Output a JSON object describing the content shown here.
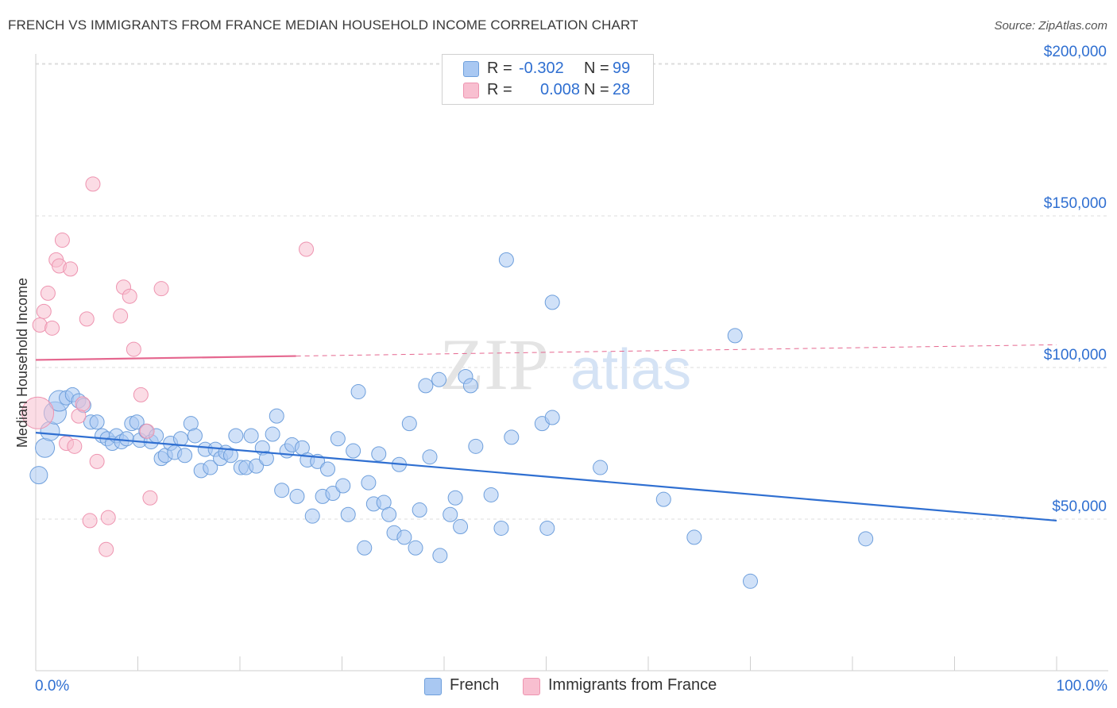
{
  "title": "FRENCH VS IMMIGRANTS FROM FRANCE MEDIAN HOUSEHOLD INCOME CORRELATION CHART",
  "source": "Source: ZipAtlas.com",
  "watermark": {
    "zip": "ZIP",
    "atlas": "atlas"
  },
  "legend": {
    "french": {
      "r_label": "R =",
      "r_value": "-0.302",
      "n_label": "N =",
      "n_value": "99"
    },
    "immigrants": {
      "r_label": "R =",
      "r_value": "0.008",
      "n_label": "N =",
      "n_value": "28"
    }
  },
  "colors": {
    "french_fill": "#a9c8f2",
    "french_stroke": "#6e9fdc",
    "french_line": "#2f6fd1",
    "imm_fill": "#f8bfd0",
    "imm_stroke": "#ee94b0",
    "imm_line": "#e5678f",
    "axis_text": "#2f6fd1",
    "grid": "#dcdcdc"
  },
  "chart_data": {
    "type": "scatter",
    "title": "FRENCH VS IMMIGRANTS FROM FRANCE MEDIAN HOUSEHOLD INCOME CORRELATION CHART",
    "xlabel": "",
    "ylabel": "Median Household Income",
    "xlim": [
      0,
      100
    ],
    "ylim": [
      0,
      210000
    ],
    "x_tick_labels": [
      "0.0%",
      "100.0%"
    ],
    "y_ticks": [
      50000,
      100000,
      150000,
      200000
    ],
    "y_tick_labels": [
      "$50,000",
      "$100,000",
      "$150,000",
      "$200,000"
    ],
    "grid": true,
    "legend_position": "top-center and bottom",
    "series": [
      {
        "name": "French",
        "r": -0.302,
        "n": 99,
        "trend": {
          "x0": 0,
          "y0": 78500,
          "x1": 100,
          "y1": 49500
        },
        "points": [
          [
            0.3,
            64500
          ],
          [
            0.9,
            73500
          ],
          [
            1.4,
            79000
          ],
          [
            1.9,
            85000
          ],
          [
            2.3,
            89000
          ],
          [
            3.0,
            90000
          ],
          [
            3.6,
            91000
          ],
          [
            4.2,
            89000
          ],
          [
            4.7,
            87500
          ],
          [
            5.4,
            82000
          ],
          [
            6.0,
            82000
          ],
          [
            6.5,
            77500
          ],
          [
            7.0,
            76500
          ],
          [
            7.5,
            75000
          ],
          [
            7.9,
            77500
          ],
          [
            8.4,
            75500
          ],
          [
            8.9,
            76500
          ],
          [
            9.4,
            81500
          ],
          [
            9.9,
            82000
          ],
          [
            10.2,
            76000
          ],
          [
            10.8,
            79000
          ],
          [
            11.3,
            75500
          ],
          [
            11.8,
            77500
          ],
          [
            12.3,
            70000
          ],
          [
            12.7,
            71000
          ],
          [
            13.2,
            75000
          ],
          [
            13.6,
            72000
          ],
          [
            14.2,
            76500
          ],
          [
            14.6,
            71000
          ],
          [
            15.2,
            81500
          ],
          [
            15.6,
            77500
          ],
          [
            16.2,
            66000
          ],
          [
            16.6,
            73000
          ],
          [
            17.1,
            67000
          ],
          [
            17.6,
            73000
          ],
          [
            18.1,
            70000
          ],
          [
            18.6,
            72000
          ],
          [
            19.1,
            71000
          ],
          [
            19.6,
            77500
          ],
          [
            20.1,
            67000
          ],
          [
            20.6,
            67000
          ],
          [
            21.1,
            77500
          ],
          [
            21.6,
            67500
          ],
          [
            22.2,
            73500
          ],
          [
            22.6,
            70000
          ],
          [
            23.2,
            78000
          ],
          [
            23.6,
            84000
          ],
          [
            24.1,
            59500
          ],
          [
            24.6,
            72500
          ],
          [
            25.1,
            74500
          ],
          [
            25.6,
            57500
          ],
          [
            26.1,
            73500
          ],
          [
            26.6,
            69500
          ],
          [
            27.1,
            51000
          ],
          [
            27.6,
            69000
          ],
          [
            28.1,
            57500
          ],
          [
            28.6,
            66500
          ],
          [
            29.1,
            58500
          ],
          [
            29.6,
            76500
          ],
          [
            30.1,
            61000
          ],
          [
            30.6,
            51500
          ],
          [
            31.1,
            72500
          ],
          [
            31.6,
            92000
          ],
          [
            32.2,
            40500
          ],
          [
            32.6,
            62000
          ],
          [
            33.1,
            55000
          ],
          [
            33.6,
            71500
          ],
          [
            34.1,
            55500
          ],
          [
            34.6,
            51500
          ],
          [
            35.1,
            45500
          ],
          [
            35.6,
            68000
          ],
          [
            36.1,
            44000
          ],
          [
            36.6,
            81500
          ],
          [
            37.2,
            40500
          ],
          [
            37.6,
            53000
          ],
          [
            38.2,
            94000
          ],
          [
            38.6,
            70500
          ],
          [
            39.6,
            38000
          ],
          [
            40.6,
            51500
          ],
          [
            41.1,
            57000
          ],
          [
            41.6,
            47500
          ],
          [
            42.1,
            97000
          ],
          [
            42.6,
            94000
          ],
          [
            43.1,
            74000
          ],
          [
            44.6,
            58000
          ],
          [
            45.6,
            47000
          ],
          [
            46.1,
            135500
          ],
          [
            46.6,
            77000
          ],
          [
            49.6,
            81500
          ],
          [
            50.6,
            83500
          ],
          [
            50.1,
            47000
          ],
          [
            50.6,
            121500
          ],
          [
            55.3,
            67000
          ],
          [
            61.5,
            56500
          ],
          [
            64.5,
            44000
          ],
          [
            68.5,
            110500
          ],
          [
            70.0,
            29500
          ],
          [
            81.3,
            43500
          ],
          [
            39.5,
            96000
          ]
        ]
      },
      {
        "name": "Immigrants from France",
        "r": 0.008,
        "n": 28,
        "trend": {
          "x0": 0,
          "y0": 102500,
          "x1": 100,
          "y1": 107500
        },
        "points": [
          [
            0.2,
            85000
          ],
          [
            0.4,
            114000
          ],
          [
            0.8,
            118500
          ],
          [
            1.2,
            124500
          ],
          [
            1.6,
            113000
          ],
          [
            2.0,
            135500
          ],
          [
            2.3,
            133500
          ],
          [
            2.6,
            142000
          ],
          [
            3.0,
            75000
          ],
          [
            3.4,
            132500
          ],
          [
            3.8,
            74000
          ],
          [
            4.2,
            84000
          ],
          [
            4.6,
            88000
          ],
          [
            5.0,
            116000
          ],
          [
            5.3,
            49500
          ],
          [
            5.6,
            160500
          ],
          [
            6.0,
            69000
          ],
          [
            6.9,
            40000
          ],
          [
            7.1,
            50500
          ],
          [
            8.3,
            117000
          ],
          [
            8.6,
            126500
          ],
          [
            9.2,
            123500
          ],
          [
            9.6,
            106000
          ],
          [
            10.3,
            91000
          ],
          [
            10.9,
            79000
          ],
          [
            11.2,
            57000
          ],
          [
            12.3,
            126000
          ],
          [
            26.5,
            139000
          ]
        ]
      }
    ]
  }
}
